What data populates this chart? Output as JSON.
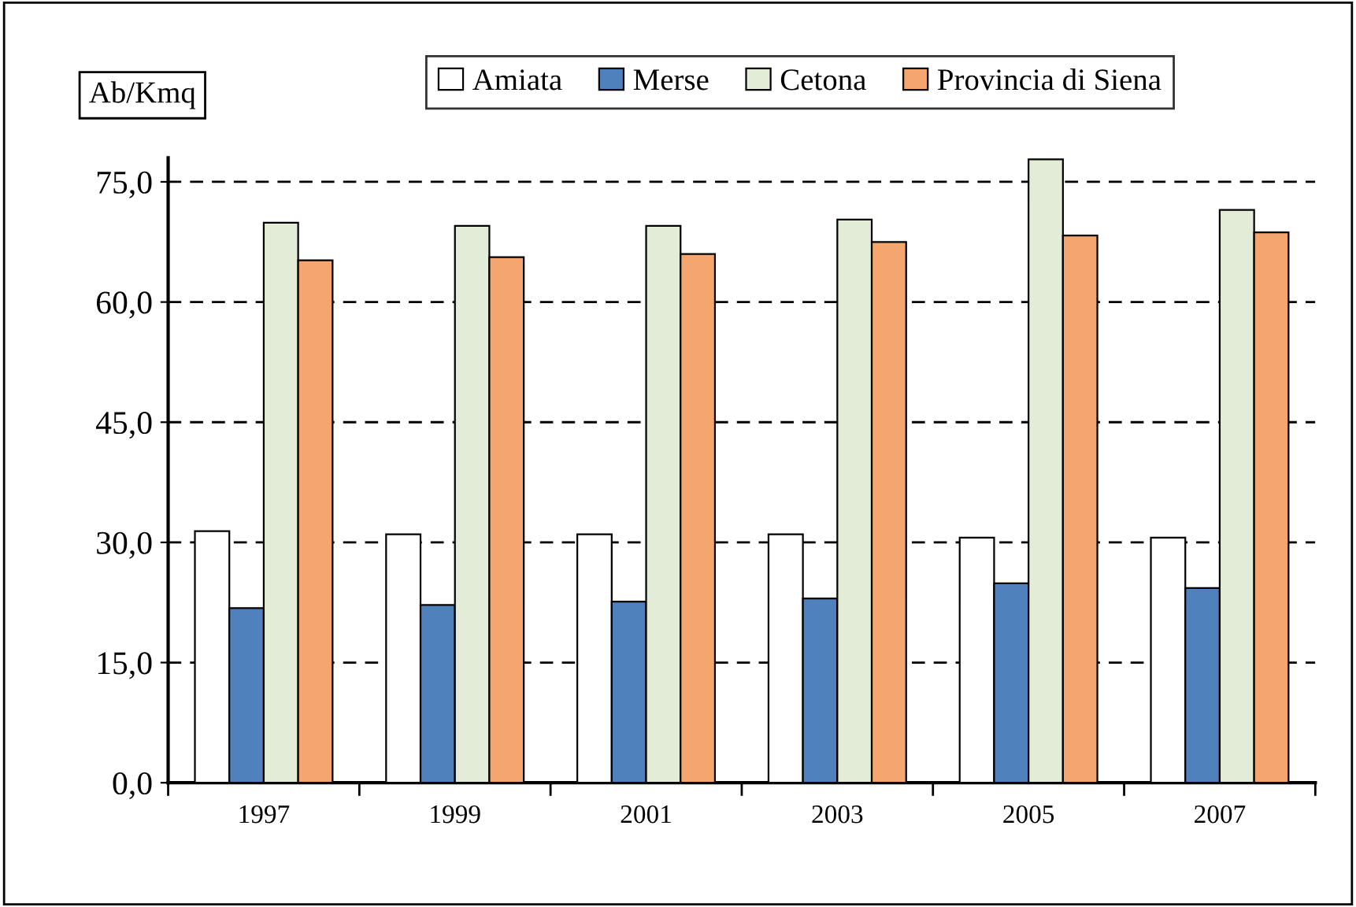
{
  "chart_data": {
    "type": "bar",
    "ylabel": "Ab/Kmq",
    "categories": [
      "1997",
      "1999",
      "2001",
      "2003",
      "2005",
      "2007"
    ],
    "series": [
      {
        "name": "Amiata",
        "color": "#ffffff",
        "values": [
          31.4,
          31.0,
          31.0,
          31.0,
          30.6,
          30.6
        ]
      },
      {
        "name": "Merse",
        "color": "#4f81bd",
        "values": [
          21.8,
          22.2,
          22.6,
          23.0,
          24.9,
          24.3
        ]
      },
      {
        "name": "Cetona",
        "color": "#e3ecd6",
        "values": [
          69.9,
          69.5,
          69.5,
          70.3,
          77.8,
          71.5
        ]
      },
      {
        "name": "Provincia di Siena",
        "color": "#f5a66e",
        "values": [
          65.2,
          65.6,
          66.0,
          67.5,
          68.3,
          68.7
        ]
      }
    ],
    "ylim": [
      0,
      78
    ],
    "yticks": [
      {
        "value": 0,
        "label": "0,0"
      },
      {
        "value": 15,
        "label": "15,0"
      },
      {
        "value": 30,
        "label": "30,0"
      },
      {
        "value": 45,
        "label": "45,0"
      },
      {
        "value": 60,
        "label": "60,0"
      },
      {
        "value": 75,
        "label": "75,0"
      }
    ],
    "grid": "y",
    "line_style": "dashed",
    "legend": "top"
  }
}
